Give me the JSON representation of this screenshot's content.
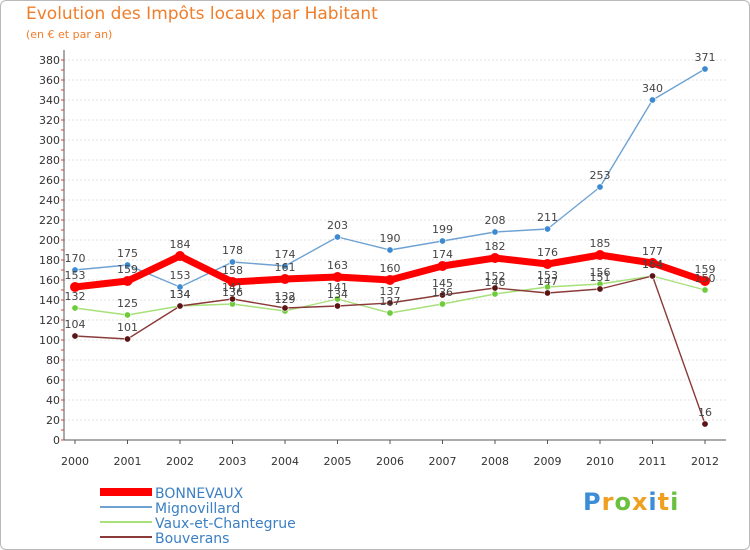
{
  "chart_data": {
    "type": "line",
    "title": "Evolution des Impôts locaux par Habitant",
    "subtitle": "(en € et par an)",
    "xlabel": "",
    "ylabel": "",
    "categories": [
      "2000",
      "2001",
      "2002",
      "2003",
      "2004",
      "2005",
      "2006",
      "2007",
      "2008",
      "2009",
      "2010",
      "2011",
      "2012"
    ],
    "ylim": [
      0,
      380
    ],
    "yticks": [
      0,
      20,
      40,
      60,
      80,
      100,
      120,
      140,
      160,
      180,
      200,
      220,
      240,
      260,
      280,
      300,
      320,
      340,
      360,
      380
    ],
    "grid": true,
    "legend_position": "bottom-left",
    "series": [
      {
        "name": "BONNEVAUX",
        "color": "#ff0000",
        "marker_color": "#ff0000",
        "values": [
          153,
          159,
          184,
          158,
          161,
          163,
          160,
          174,
          182,
          176,
          185,
          177,
          159
        ],
        "labels": [
          "153",
          "159",
          "184",
          "158",
          "161",
          "163",
          "160",
          "174",
          "182",
          "176",
          "185",
          "177",
          "159"
        ]
      },
      {
        "name": "Mignovillard",
        "color": "#6fa2d2",
        "marker_color": "#3d8ad0",
        "values": [
          170,
          175,
          153,
          178,
          174,
          203,
          190,
          199,
          208,
          211,
          253,
          340,
          371
        ],
        "labels": [
          "170",
          "175",
          "153",
          "178",
          "174",
          "203",
          "190",
          "199",
          "208",
          "211",
          "253",
          "340",
          "371"
        ]
      },
      {
        "name": "Vaux-et-Chantegrue",
        "color": "#a8e07a",
        "marker_color": "#6ecb3c",
        "values": [
          132,
          125,
          134,
          136,
          129,
          141,
          127,
          136,
          146,
          153,
          156,
          164,
          150
        ],
        "labels": [
          "132",
          "125",
          "134",
          "136",
          "129",
          "141",
          "127",
          "136",
          "146",
          "153",
          "156",
          "164",
          "150"
        ]
      },
      {
        "name": "Bouverans",
        "color": "#8b3a3a",
        "marker_color": "#5a1414",
        "values": [
          104,
          101,
          134,
          141,
          132,
          134,
          137,
          145,
          152,
          147,
          151,
          164,
          16
        ],
        "labels": [
          "104",
          "101",
          "134",
          "141",
          "132",
          "134",
          "137",
          "145",
          "152",
          "147",
          "151",
          "164",
          "16"
        ]
      }
    ]
  },
  "branding": {
    "logo_letters": [
      "P",
      "r",
      "o",
      "x",
      "i",
      "t",
      "i"
    ],
    "logo_colors": [
      "#3b8ed6",
      "#f0a020",
      "#6cc040",
      "#f0a020",
      "#3b8ed6",
      "#f0a020",
      "#6cc040"
    ]
  }
}
